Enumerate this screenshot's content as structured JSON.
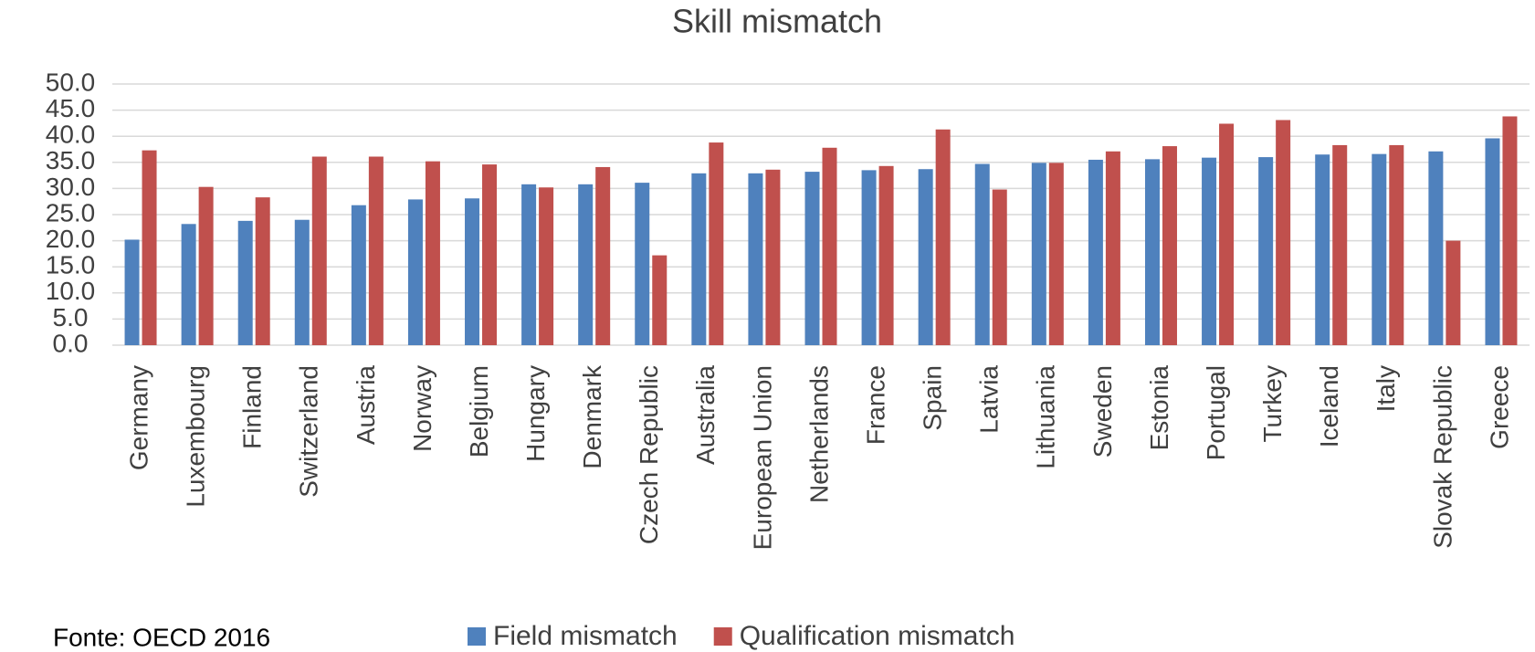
{
  "chart_data": {
    "type": "bar",
    "title": "Skill mismatch",
    "source": "Fonte: OECD 2016",
    "categories": [
      "Germany",
      "Luxembourg",
      "Finland",
      "Switzerland",
      "Austria",
      "Norway",
      "Belgium",
      "Hungary",
      "Denmark",
      "Czech Republic",
      "Australia",
      "European Union",
      "Netherlands",
      "France",
      "Spain",
      "Latvia",
      "Lithuania",
      "Sweden",
      "Estonia",
      "Portugal",
      "Turkey",
      "Iceland",
      "Italy",
      "Slovak Republic",
      "Greece"
    ],
    "series": [
      {
        "name": "Field mismatch",
        "color": "#4f81bd",
        "values": [
          20.2,
          23.2,
          23.8,
          24.0,
          26.8,
          27.9,
          28.1,
          30.8,
          30.8,
          31.1,
          32.9,
          32.9,
          33.2,
          33.5,
          33.7,
          34.7,
          34.9,
          35.5,
          35.6,
          35.9,
          36.0,
          36.5,
          36.6,
          37.1,
          39.6
        ]
      },
      {
        "name": "Qualification mismatch",
        "color": "#c0504d",
        "values": [
          37.3,
          30.3,
          28.3,
          36.1,
          36.1,
          35.2,
          34.6,
          30.2,
          34.1,
          17.2,
          38.8,
          33.6,
          37.8,
          34.3,
          41.3,
          29.8,
          34.9,
          37.1,
          38.1,
          42.4,
          43.1,
          38.3,
          38.3,
          20.0,
          43.8
        ]
      }
    ],
    "ylim": [
      0,
      50
    ],
    "yticks": [
      {
        "value": 0,
        "label": "0.0"
      },
      {
        "value": 5,
        "label": "5.0"
      },
      {
        "value": 10,
        "label": "10.0"
      },
      {
        "value": 15,
        "label": "15.0"
      },
      {
        "value": 20,
        "label": "20.0"
      },
      {
        "value": 25,
        "label": "25.0"
      },
      {
        "value": 30,
        "label": "30.0"
      },
      {
        "value": 35,
        "label": "35.0"
      },
      {
        "value": 40,
        "label": "40.0"
      },
      {
        "value": 45,
        "label": "45.0"
      },
      {
        "value": 50,
        "label": "50.0"
      }
    ],
    "grid": true
  }
}
